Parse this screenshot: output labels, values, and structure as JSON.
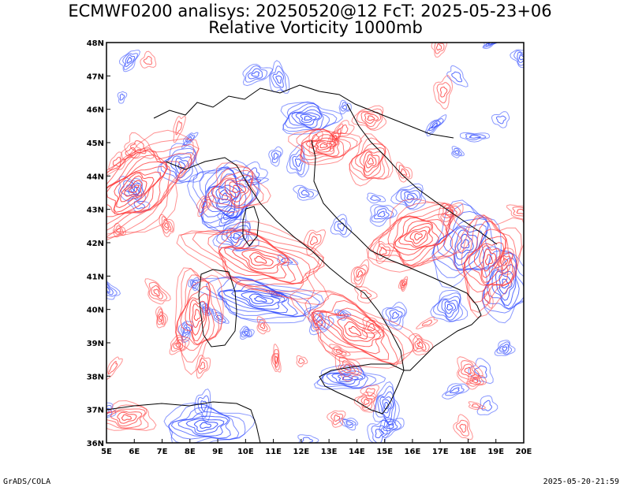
{
  "header": {
    "title_line1": "ECMWF0200 analisys: 20250520@12 FcT: 2025-05-23+06",
    "title_line2": "Relative Vorticity 1000mb"
  },
  "map": {
    "lon_range": [
      5,
      20
    ],
    "lat_range": [
      36,
      48
    ],
    "lon_ticks": [
      "5E",
      "6E",
      "7E",
      "8E",
      "9E",
      "10E",
      "11E",
      "12E",
      "13E",
      "14E",
      "15E",
      "16E",
      "17E",
      "18E",
      "19E",
      "20E"
    ],
    "lat_ticks": [
      "48N",
      "47N",
      "46N",
      "45N",
      "44N",
      "43N",
      "42N",
      "41N",
      "40N",
      "39N",
      "38N",
      "37N",
      "36N"
    ],
    "colors": {
      "positive_vorticity": "#ff3a3a",
      "negative_vorticity": "#2a45ff",
      "coastline": "#000000",
      "frame": "#000000"
    }
  },
  "footer": {
    "left": "GrADS/COLA",
    "right": "2025-05-20-21:59"
  }
}
